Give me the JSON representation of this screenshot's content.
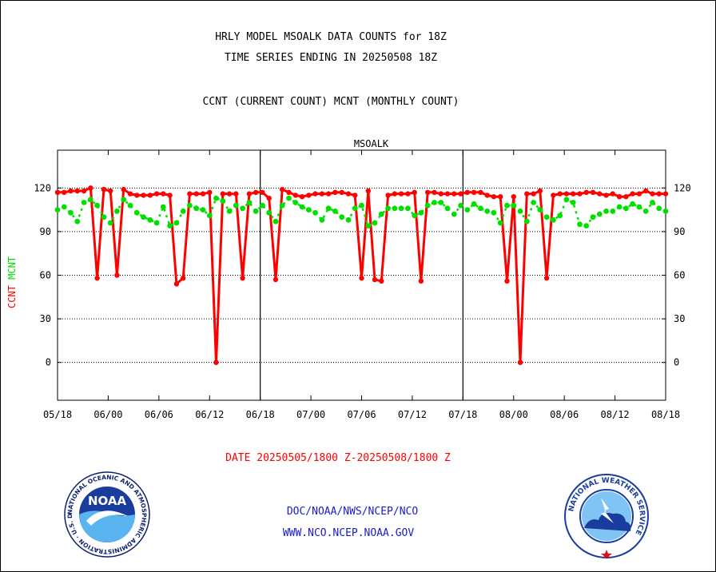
{
  "header": {
    "title_line1": "HRLY MODEL MSOALK DATA COUNTS for 18Z",
    "title_line2": "TIME SERIES ENDING IN 20250508 18Z",
    "subtitle": "CCNT (CURRENT COUNT) MCNT (MONTHLY COUNT)"
  },
  "footer": {
    "date_range": "DATE 20250505/1800 Z-20250508/1800 Z",
    "org": "DOC/NOAA/NWS/NCEP/NCO",
    "url": "WWW.NCO.NCEP.NOAA.GOV"
  },
  "logos": {
    "noaa_text": "NOAA",
    "noaa_ring": "NATIONAL OCEANIC AND ATMOSPHERIC ADMINISTRATION · U.S. DEPARTMENT OF COMMERCE ·",
    "nws_ring": "NATIONAL WEATHER SERVICE"
  },
  "chart_data": {
    "type": "line",
    "title": "MSOALK",
    "ylabel_ccnt": "CCNT",
    "ylabel_mcnt": "MCNT",
    "xlabel": "",
    "x_tick_labels": [
      "05/18",
      "06/00",
      "06/06",
      "06/12",
      "06/18",
      "07/00",
      "07/06",
      "07/12",
      "07/18",
      "08/00",
      "08/06",
      "08/12",
      "08/18"
    ],
    "y_ticks": [
      0,
      30,
      60,
      90,
      120
    ],
    "ylim": [
      -26,
      146
    ],
    "x_hours_range": [
      0,
      72
    ],
    "grid": "horizontal dotted",
    "colors": {
      "ccnt": "#ff0000",
      "mcnt": "#00e000",
      "axis_title": "#0000cc"
    },
    "series": [
      {
        "name": "CCNT",
        "values": [
          117,
          117,
          118,
          118,
          118,
          120,
          58,
          119,
          118,
          60,
          119,
          116,
          115,
          115,
          115,
          116,
          116,
          115,
          54,
          58,
          116,
          116,
          116,
          117,
          0,
          116,
          116,
          116,
          58,
          116,
          117,
          117,
          113,
          57,
          119,
          117,
          115,
          114,
          115,
          116,
          116,
          116,
          117,
          117,
          116,
          115,
          58,
          118,
          57,
          56,
          115,
          116,
          116,
          116,
          117,
          56,
          117,
          117,
          116,
          116,
          116,
          116,
          117,
          117,
          117,
          115,
          114,
          114,
          56,
          114,
          0,
          116,
          116,
          118,
          58,
          115,
          116,
          116,
          116,
          116,
          117,
          117,
          116,
          115,
          116,
          114,
          114,
          116,
          116,
          118,
          116,
          116,
          116
        ]
      },
      {
        "name": "MCNT",
        "values": [
          105,
          107,
          103,
          97,
          110,
          112,
          108,
          100,
          96,
          104,
          112,
          108,
          103,
          100,
          98,
          96,
          107,
          94,
          96,
          104,
          108,
          106,
          105,
          101,
          113,
          111,
          104,
          108,
          106,
          110,
          104,
          108,
          103,
          97,
          108,
          113,
          110,
          107,
          105,
          103,
          98,
          106,
          104,
          100,
          98,
          106,
          108,
          94,
          96,
          102,
          106,
          106,
          106,
          106,
          101,
          103,
          108,
          110,
          110,
          106,
          102,
          108,
          105,
          109,
          106,
          104,
          103,
          96,
          108,
          108,
          104,
          97,
          110,
          105,
          100,
          98,
          101,
          112,
          110,
          95,
          94,
          100,
          102,
          104,
          104,
          107,
          106,
          109,
          107,
          104,
          110,
          106,
          104
        ]
      }
    ]
  }
}
